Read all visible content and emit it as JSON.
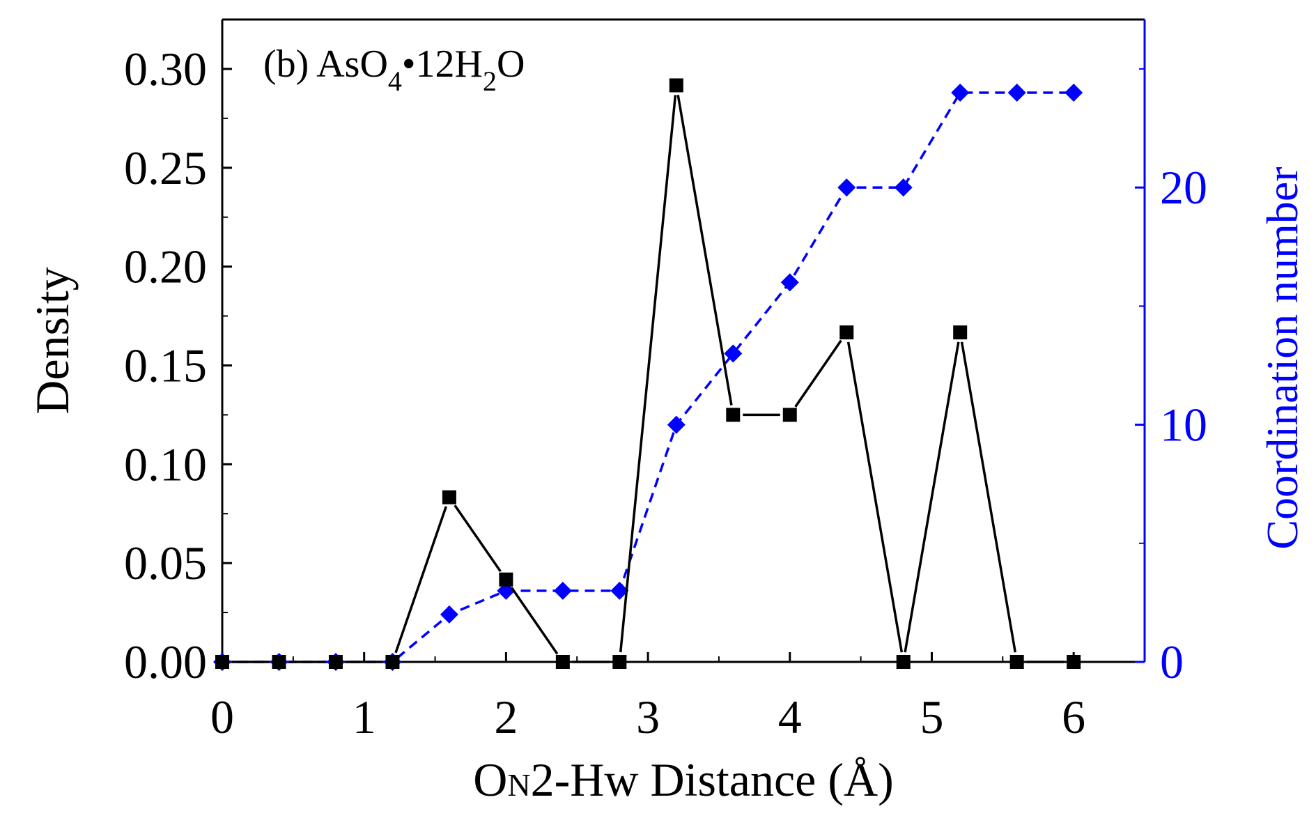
{
  "colors": {
    "density": "#000000",
    "coordination": "#0000ff",
    "frame": "#000000",
    "background": "#ffffff"
  },
  "chart_data": {
    "type": "line",
    "title": "",
    "annotation": {
      "label_prefix": "(b) AsO",
      "sub1": "4",
      "bullet": "•",
      "mid": "12H",
      "sub2": "2",
      "suffix": "O"
    },
    "xlabel": {
      "o": "O",
      "n": "N",
      "rest": "2-Hw Distance (Å)"
    },
    "ylabel_left": "Density",
    "ylabel_right": "Coordination number",
    "xlim": [
      0,
      6.5
    ],
    "ylim_left": [
      0,
      0.325
    ],
    "ylim_right": [
      0,
      27.083
    ],
    "x_ticks": [
      0,
      1,
      2,
      3,
      4,
      5,
      6
    ],
    "x_tick_labels": [
      "0",
      "1",
      "2",
      "3",
      "4",
      "5",
      "6"
    ],
    "y_left_ticks": [
      0,
      0.05,
      0.1,
      0.15,
      0.2,
      0.25,
      0.3
    ],
    "y_left_tick_labels": [
      "0.00",
      "0.05",
      "0.10",
      "0.15",
      "0.20",
      "0.25",
      "0.30"
    ],
    "y_right_ticks": [
      0,
      10,
      20
    ],
    "y_right_tick_labels": [
      "0",
      "10",
      "20"
    ],
    "series": [
      {
        "name": "Density",
        "axis": "left",
        "marker": "square",
        "line": "solid",
        "color": "#000000",
        "x": [
          0,
          0.4,
          0.8,
          1.2,
          1.6,
          2.0,
          2.4,
          2.8,
          3.2,
          3.6,
          4.0,
          4.4,
          4.8,
          5.2,
          5.6,
          6.0
        ],
        "values": [
          0,
          0,
          0,
          0,
          0.0833,
          0.0417,
          0,
          0,
          0.2917,
          0.125,
          0.125,
          0.1667,
          0,
          0.1667,
          0,
          0
        ]
      },
      {
        "name": "Coordination number",
        "axis": "right",
        "marker": "diamond",
        "line": "dashed",
        "color": "#0000ff",
        "x": [
          0,
          0.4,
          0.8,
          1.2,
          1.6,
          2.0,
          2.4,
          2.8,
          3.2,
          3.6,
          4.0,
          4.4,
          4.8,
          5.2,
          5.6,
          6.0
        ],
        "values": [
          0,
          0,
          0,
          0,
          2,
          3,
          3,
          3,
          10,
          13,
          16,
          20,
          20,
          24,
          24,
          24
        ]
      }
    ],
    "legend": "none",
    "grid": false
  }
}
